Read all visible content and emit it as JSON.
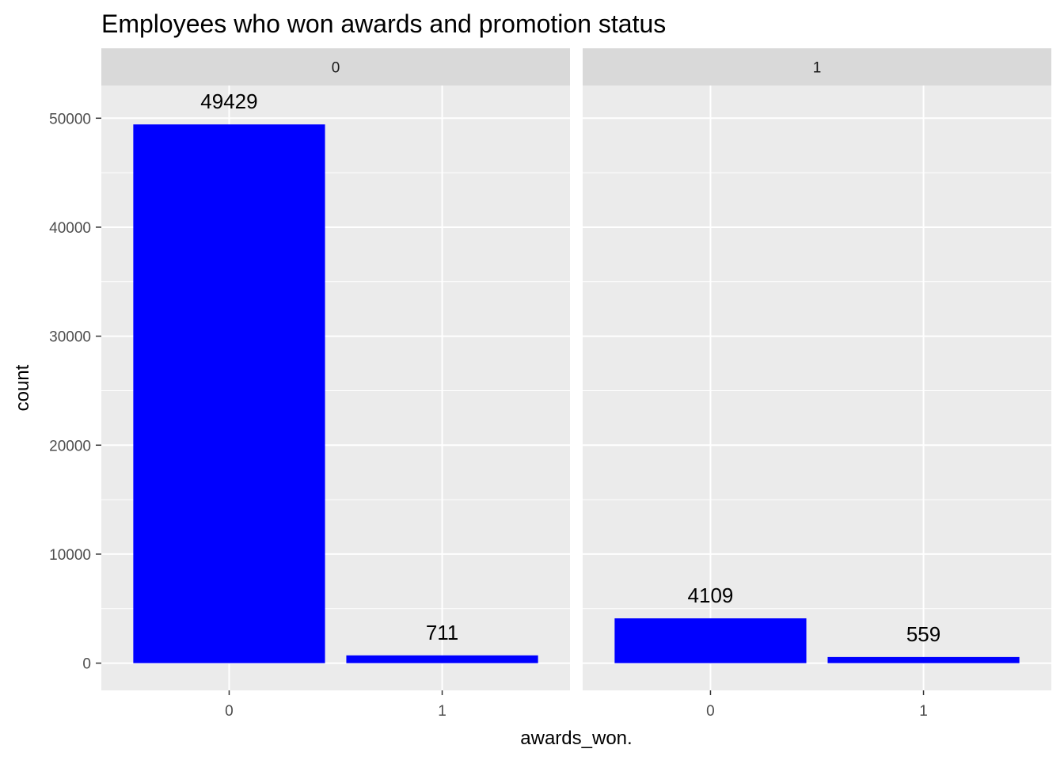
{
  "chart_data": {
    "type": "bar",
    "title": "Employees who won awards and promotion status",
    "xlabel": "awards_won.",
    "ylabel": "count",
    "categories": [
      "0",
      "1"
    ],
    "ylim": [
      0,
      53000
    ],
    "y_ticks": [
      0,
      10000,
      20000,
      30000,
      40000,
      50000
    ],
    "grid": true,
    "bar_color": "#0000ff",
    "panel_background": "#ebebeb",
    "strip_background": "#d9d9d9",
    "facets": [
      {
        "label": "0",
        "values": [
          49429,
          711
        ],
        "data_labels": [
          "49429",
          "711"
        ]
      },
      {
        "label": "1",
        "values": [
          4109,
          559
        ],
        "data_labels": [
          "4109",
          "559"
        ]
      }
    ]
  }
}
